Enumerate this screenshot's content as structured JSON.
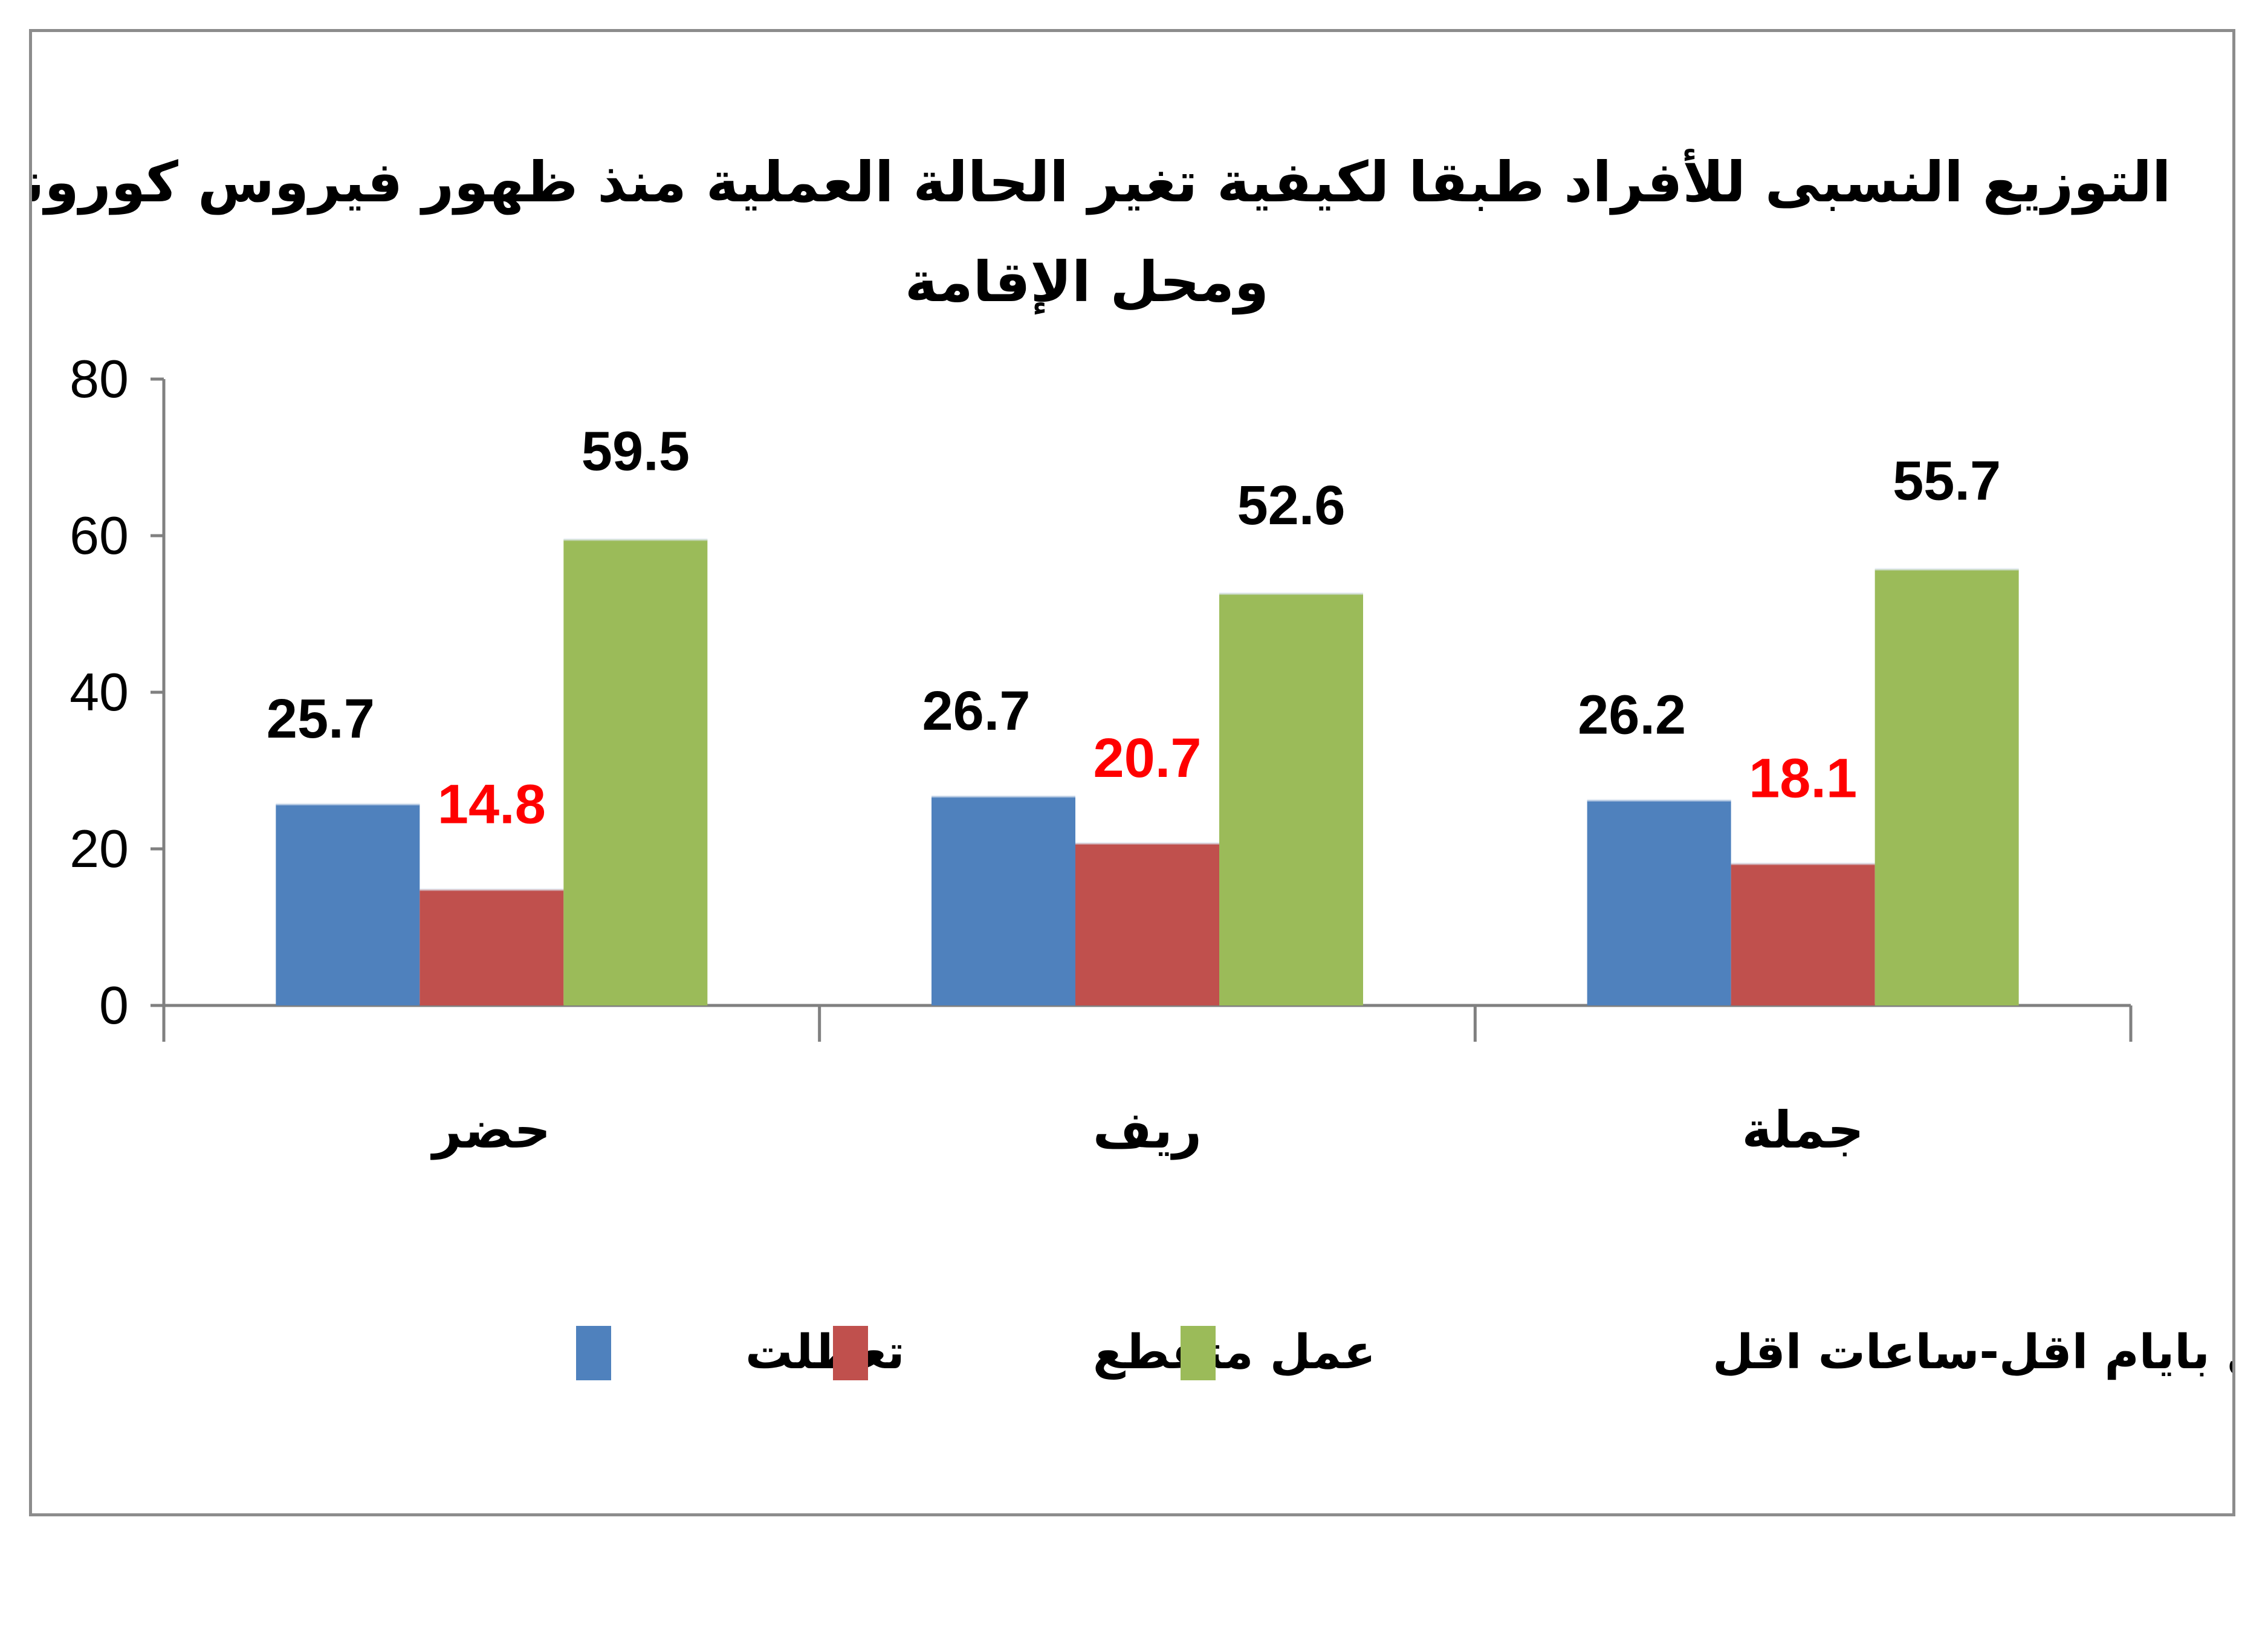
{
  "chart_data": {
    "type": "bar",
    "title_lines": [
      "التوزيع النسبى للأفراد طبقا لكيفية تغير الحالة العملية منذ ظهور فيروس كورونا",
      "ومحل الإقامة"
    ],
    "categories": [
      "حضر",
      "ريف",
      "جملة"
    ],
    "series": [
      {
        "name": "تعطلت",
        "values": [
          25.7,
          26.7,
          26.2
        ],
        "color": "#4f81bd",
        "label_color": "#000000"
      },
      {
        "name": "عمل متقطع",
        "values": [
          14.8,
          20.7,
          18.1
        ],
        "color": "#c0504d",
        "label_color": "#ff0000"
      },
      {
        "name": "عمل بايام اقل-ساعات اقل",
        "values": [
          59.5,
          52.6,
          55.7
        ],
        "color": "#9bbb59",
        "label_color": "#000000"
      }
    ],
    "ylim": [
      0,
      80
    ],
    "yticks": [
      "0",
      "20",
      "40",
      "60",
      "80"
    ],
    "grid": false,
    "legend_position": "bottom"
  }
}
